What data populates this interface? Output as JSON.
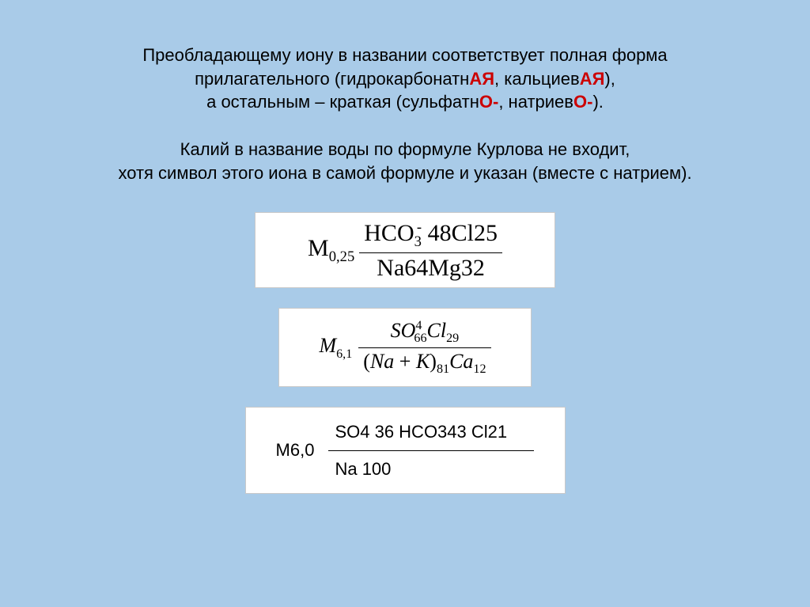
{
  "colors": {
    "background": "#a9cbe8",
    "text": "#000000",
    "highlight": "#cc0000",
    "box_bg": "#ffffff",
    "box_border": "#c9c9c9"
  },
  "intro": {
    "line1a": "Преобладающему иону в названии соответствует полная форма",
    "line2a": "прилагательного (гидрокарбонатн",
    "hl1": "АЯ",
    "line2b": ", кальциев",
    "hl2": "АЯ",
    "line2c": "),",
    "line3a": "а остальным – краткая (сульфатн",
    "hl3": "О-",
    "line3b": ", натриев",
    "hl4": "О-",
    "line3c": ")."
  },
  "intro2": {
    "line1": "Калий в название воды по формуле Курлова не входит,",
    "line2": "хотя символ этого иона в самой формуле и указан (вместе с натрием)."
  },
  "formula1": {
    "M": "M",
    "Msub": "0,25",
    "num_a": "HCO",
    "num_sub": "3",
    "num_sup": "-",
    "num_b": " 48Cl25",
    "den": "Na64Mg32"
  },
  "formula2": {
    "M": "M",
    "Msub": "6,1",
    "num_SO": "SO",
    "num_SO_sup": "4",
    "num_SO_sub": "66",
    "num_Cl": "Cl",
    "num_Cl_sub": "29",
    "den_open": "(",
    "den_Na": "Na",
    "den_plus": " + ",
    "den_K": "K",
    "den_close": ")",
    "den_NaK_sub": "81",
    "den_Ca": "Ca",
    "den_Ca_sub": "12"
  },
  "formula3": {
    "left": "M6,0",
    "num": "SO4 36 HCO343 Cl21",
    "den": "Na 100"
  }
}
